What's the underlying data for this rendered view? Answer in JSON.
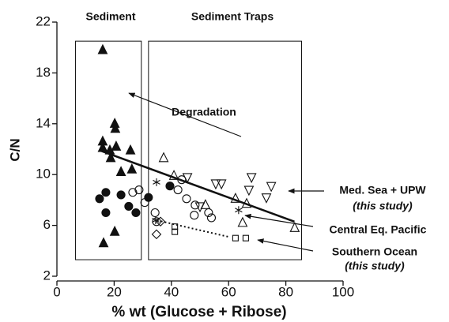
{
  "chart_data": {
    "type": "scatter",
    "xlabel": "% wt (Glucose + Ribose)",
    "ylabel": "C/N",
    "xlim": [
      0,
      100
    ],
    "ylim": [
      2,
      22
    ],
    "xticks": [
      0,
      20,
      40,
      60,
      80,
      100
    ],
    "yticks": [
      2,
      6,
      10,
      14,
      18,
      22
    ],
    "annotations": [
      "Sediment",
      "Sediment Traps",
      "Degradation",
      "Med. Sea + UPW",
      "(this study)",
      "Central Eq. Pacific",
      "Southern Ocean",
      "(this study)"
    ],
    "regions": [
      {
        "x": [
          6.5,
          29.5
        ],
        "y": [
          3.3,
          20.5
        ]
      },
      {
        "x": [
          32,
          85.5
        ],
        "y": [
          3.3,
          20.5
        ]
      }
    ],
    "lines": [
      {
        "style": "solid",
        "x": [
          15,
          83
        ],
        "y": [
          11.9,
          6.3
        ]
      },
      {
        "style": "dotted",
        "x": [
          35,
          60
        ],
        "y": [
          6.4,
          5.1
        ]
      }
    ],
    "series": [
      {
        "marker": "triangle",
        "filled": true,
        "color": "#111111",
        "x": [
          16,
          16,
          16,
          20.2,
          20.4,
          20.7,
          16.3,
          20.2,
          25.7,
          18.5,
          22.4,
          18.8,
          26.2
        ],
        "y": [
          19.8,
          12.6,
          12.1,
          14.0,
          13.6,
          12.2,
          4.6,
          5.5,
          11.9,
          11.9,
          10.2,
          11.3,
          10.4
        ]
      },
      {
        "marker": "circle",
        "filled": true,
        "color": "#111111",
        "x": [
          14.9,
          17.1,
          22.4,
          17.1,
          25.1,
          27.6,
          32,
          39.5
        ],
        "y": [
          8.1,
          8.6,
          8.4,
          7.0,
          7.5,
          7.0,
          8.2,
          9.1
        ]
      },
      {
        "marker": "circle",
        "filled": false,
        "color": "#111111",
        "x": [
          28.7,
          26.5,
          30.7,
          34.3,
          34.8,
          42.3,
          45.3,
          48.3,
          53,
          48,
          54,
          43.6
        ],
        "y": [
          8.8,
          8.6,
          7.8,
          7.0,
          6.3,
          8.8,
          8.1,
          7.6,
          7.0,
          6.8,
          6.6,
          9.6
        ]
      },
      {
        "marker": "triangle",
        "filled": false,
        "color": "#111111",
        "x": [
          37.3,
          40.9,
          62.4,
          64.9,
          66.3,
          83.1,
          51.9
        ],
        "y": [
          11.3,
          9.9,
          8.1,
          6.2,
          7.7,
          5.8,
          7.6
        ]
      },
      {
        "marker": "down-triangle",
        "filled": false,
        "color": "#111111",
        "x": [
          45.6,
          55.5,
          57.5,
          68,
          67.1,
          73.2,
          74.9,
          50
        ],
        "y": [
          9.8,
          9.3,
          9.3,
          9.8,
          8.8,
          8.2,
          9.1,
          7.5
        ]
      },
      {
        "marker": "asterisk",
        "filled": false,
        "color": "#111111",
        "x": [
          34.8,
          63.5,
          34.5
        ],
        "y": [
          9.4,
          7.2,
          6.4
        ]
      },
      {
        "marker": "diamond",
        "filled": false,
        "color": "#111111",
        "x": [
          34.8,
          36.2
        ],
        "y": [
          5.3,
          6.3
        ]
      },
      {
        "marker": "square",
        "filled": false,
        "color": "#111111",
        "x": [
          41.2,
          41.2,
          66,
          62.4
        ],
        "y": [
          5.9,
          5.5,
          5.0,
          5.0
        ]
      }
    ]
  }
}
